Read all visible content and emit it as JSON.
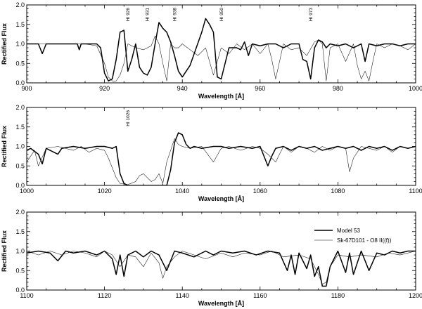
{
  "chart_data": [
    {
      "type": "line",
      "xlabel": "Wavelength [Å]",
      "ylabel": "Rectified Flux",
      "xlim": [
        900,
        1000
      ],
      "ylim": [
        0,
        2.0
      ],
      "xticks": [
        "900",
        "920",
        "940",
        "960",
        "980",
        "1000"
      ],
      "yticks": [
        "0.0",
        "0.5",
        "1.0",
        "1.5",
        "2.0"
      ],
      "line_labels": [
        {
          "text": "HI 926",
          "x": 926
        },
        {
          "text": "HI 931",
          "x": 931
        },
        {
          "text": "HI 938",
          "x": 938
        },
        {
          "text": "HI 950",
          "x": 950
        },
        {
          "text": "HI 973",
          "x": 973
        }
      ],
      "series": [
        {
          "x": [
            900,
            903,
            904,
            905,
            910,
            913,
            913.5,
            914,
            916,
            918,
            919,
            920,
            921,
            922,
            923,
            924,
            925,
            926,
            927,
            928,
            929,
            930,
            931,
            932,
            933,
            934,
            935,
            936,
            937,
            938,
            939,
            940,
            942,
            945,
            946,
            947,
            948,
            949,
            950,
            951,
            952,
            954,
            955,
            956,
            957,
            958,
            960,
            962,
            964,
            966,
            968,
            970,
            971,
            972,
            973,
            974,
            975,
            976,
            977,
            978,
            980,
            982,
            984,
            986,
            987,
            988,
            990,
            992,
            994,
            996,
            998,
            1000
          ],
          "values": [
            1.0,
            1.0,
            0.75,
            1.0,
            1.0,
            1.0,
            0.85,
            1.0,
            1.0,
            1.0,
            0.9,
            0.25,
            0.05,
            0.1,
            0.6,
            1.3,
            1.35,
            0.3,
            0.6,
            1.0,
            0.4,
            0.25,
            0.2,
            0.4,
            1.0,
            1.55,
            1.4,
            1.3,
            1.05,
            0.7,
            0.3,
            0.15,
            0.45,
            1.3,
            1.65,
            1.5,
            1.3,
            0.15,
            0.1,
            0.5,
            0.9,
            0.9,
            0.85,
            1.05,
            0.7,
            1.0,
            0.95,
            1.0,
            1.0,
            0.9,
            1.0,
            1.0,
            0.6,
            0.55,
            0.1,
            0.9,
            1.1,
            1.05,
            0.9,
            1.0,
            0.95,
            1.0,
            0.9,
            1.0,
            0.55,
            1.0,
            0.95,
            1.0,
            1.0,
            0.95,
            1.0,
            1.0
          ]
        },
        {
          "x": [
            900,
            910,
            915,
            918,
            920,
            921,
            922,
            923,
            924,
            925,
            926,
            927,
            928,
            930,
            932,
            933,
            934,
            935,
            936,
            937,
            938,
            939,
            940,
            942,
            944,
            946,
            948,
            950,
            952,
            954,
            956,
            958,
            960,
            962,
            963,
            964,
            966,
            968,
            970,
            972,
            974,
            975,
            976,
            977,
            978,
            980,
            982,
            984,
            985,
            986,
            987,
            988,
            989,
            990,
            992,
            994,
            996,
            998,
            1000
          ],
          "values": [
            1.0,
            1.0,
            1.0,
            0.95,
            0.5,
            0.15,
            0.05,
            0.05,
            0.2,
            0.5,
            1.0,
            0.95,
            0.9,
            0.85,
            0.95,
            1.2,
            1.0,
            0.5,
            0.05,
            1.0,
            0.9,
            0.9,
            1.0,
            0.85,
            0.7,
            0.9,
            0.2,
            0.9,
            0.75,
            1.0,
            0.85,
            1.0,
            0.75,
            1.0,
            0.6,
            0.1,
            1.0,
            0.85,
            0.9,
            0.7,
            1.05,
            1.1,
            1.0,
            0.05,
            0.9,
            1.0,
            0.55,
            1.0,
            0.45,
            0.1,
            0.3,
            0.05,
            0.55,
            1.0,
            0.9,
            1.0,
            0.95,
            0.85,
            1.0
          ]
        }
      ]
    },
    {
      "type": "line",
      "xlabel": "Wavelength [Å]",
      "ylabel": "Rectified Flux",
      "xlim": [
        1000,
        1100
      ],
      "ylim": [
        0,
        2.0
      ],
      "xticks": [
        "1000",
        "1020",
        "1040",
        "1060",
        "1080",
        "1100"
      ],
      "yticks": [
        "0.0",
        "0.5",
        "1.0",
        "1.5",
        "2.0"
      ],
      "line_labels": [
        {
          "text": "HI 1026",
          "x": 1026
        }
      ],
      "series": [
        {
          "x": [
            1000,
            1001,
            1003,
            1004,
            1005,
            1008,
            1009,
            1012,
            1015,
            1018,
            1020,
            1022,
            1023,
            1024,
            1025,
            1026,
            1028,
            1030,
            1032,
            1034,
            1035,
            1036,
            1037,
            1038,
            1039,
            1040,
            1041,
            1042,
            1043,
            1045,
            1048,
            1050,
            1052,
            1055,
            1058,
            1060,
            1062,
            1063,
            1064,
            1066,
            1068,
            1070,
            1072,
            1074,
            1076,
            1078,
            1080,
            1082,
            1084,
            1086,
            1088,
            1090,
            1092,
            1094,
            1096,
            1098,
            1100
          ],
          "values": [
            0.9,
            0.95,
            0.8,
            0.55,
            0.95,
            0.8,
            0.95,
            1.0,
            0.95,
            1.0,
            1.0,
            0.95,
            1.0,
            0.3,
            0.05,
            0.0,
            0.0,
            0.0,
            0.0,
            0.0,
            0.0,
            0.0,
            0.4,
            1.1,
            1.35,
            1.3,
            1.05,
            0.95,
            1.0,
            0.95,
            1.0,
            1.0,
            0.95,
            1.0,
            0.95,
            1.0,
            0.5,
            0.75,
            0.95,
            1.0,
            0.9,
            1.0,
            0.95,
            1.0,
            0.9,
            0.95,
            1.0,
            0.95,
            1.0,
            0.9,
            1.0,
            0.95,
            1.0,
            0.9,
            1.0,
            0.95,
            1.0
          ]
        },
        {
          "x": [
            1000,
            1002,
            1003,
            1005,
            1008,
            1010,
            1012,
            1014,
            1016,
            1018,
            1020,
            1021,
            1022,
            1023,
            1024,
            1026,
            1028,
            1029,
            1030,
            1031,
            1032,
            1033,
            1034,
            1035,
            1036,
            1037,
            1038,
            1039,
            1040,
            1042,
            1045,
            1048,
            1050,
            1052,
            1055,
            1058,
            1060,
            1062,
            1064,
            1066,
            1068,
            1070,
            1072,
            1074,
            1076,
            1078,
            1080,
            1082,
            1083,
            1084,
            1086,
            1088,
            1090,
            1092,
            1094,
            1096,
            1098,
            1100
          ],
          "values": [
            0.6,
            0.9,
            0.5,
            0.95,
            1.0,
            0.95,
            0.9,
            1.0,
            0.85,
            0.95,
            0.9,
            0.7,
            0.45,
            0.2,
            0.05,
            0.02,
            0.1,
            0.25,
            0.3,
            0.2,
            0.1,
            0.15,
            0.3,
            0.05,
            0.6,
            0.9,
            1.2,
            1.05,
            1.0,
            0.95,
            1.0,
            0.6,
            0.95,
            1.0,
            0.9,
            1.0,
            0.95,
            0.8,
            0.6,
            1.0,
            0.85,
            1.0,
            0.95,
            0.85,
            1.0,
            0.9,
            1.0,
            0.95,
            0.35,
            0.7,
            1.0,
            0.95,
            0.9,
            1.0,
            0.85,
            1.0,
            0.95,
            1.0
          ]
        }
      ]
    },
    {
      "type": "line",
      "xlabel": "Wavelength [Å]",
      "ylabel": "Rectified Flux",
      "xlim": [
        1100,
        1200
      ],
      "ylim": [
        0,
        2.0
      ],
      "xticks": [
        "1100",
        "1120",
        "1140",
        "1160",
        "1180",
        "1200"
      ],
      "yticks": [
        "0.0",
        "0.5",
        "1.0",
        "1.5",
        "2.0"
      ],
      "legend": {
        "position": "right",
        "entries": [
          "Model 53",
          "Sk-67D101 - O8 II((f))"
        ]
      },
      "series": [
        {
          "name": "Model 53",
          "x": [
            1100,
            1103,
            1106,
            1108,
            1110,
            1112,
            1115,
            1118,
            1120,
            1122,
            1123,
            1124,
            1125,
            1126,
            1128,
            1130,
            1132,
            1134,
            1136,
            1138,
            1140,
            1143,
            1146,
            1148,
            1150,
            1153,
            1156,
            1159,
            1162,
            1165,
            1167,
            1168,
            1169,
            1170,
            1172,
            1173,
            1174,
            1175,
            1176,
            1177,
            1178,
            1180,
            1182,
            1183,
            1184,
            1186,
            1188,
            1190,
            1192,
            1194,
            1196,
            1198,
            1200
          ],
          "values": [
            0.95,
            1.0,
            0.95,
            0.75,
            1.0,
            0.95,
            1.0,
            0.9,
            1.0,
            0.8,
            0.4,
            0.9,
            0.35,
            0.9,
            1.0,
            0.85,
            1.0,
            0.9,
            0.5,
            1.0,
            0.95,
            0.85,
            1.0,
            0.9,
            1.0,
            0.95,
            1.0,
            0.9,
            1.0,
            0.95,
            0.5,
            0.9,
            0.4,
            0.95,
            0.55,
            0.9,
            0.35,
            0.6,
            0.1,
            0.1,
            0.6,
            1.0,
            0.45,
            0.95,
            0.4,
            1.0,
            0.5,
            0.95,
            0.9,
            1.0,
            0.95,
            1.0,
            1.0
          ]
        },
        {
          "name": "Sk-67D101 - O8 II((f))",
          "x": [
            1100,
            1103,
            1106,
            1109,
            1112,
            1115,
            1118,
            1120,
            1122,
            1124,
            1126,
            1128,
            1130,
            1132,
            1134,
            1135,
            1136,
            1138,
            1140,
            1143,
            1146,
            1150,
            1153,
            1156,
            1160,
            1163,
            1166,
            1170,
            1173,
            1175,
            1176,
            1177,
            1178,
            1180,
            1183,
            1186,
            1190,
            1193,
            1196,
            1200
          ],
          "values": [
            1.0,
            0.9,
            1.0,
            0.9,
            1.0,
            0.95,
            0.85,
            1.0,
            0.9,
            0.6,
            0.9,
            0.85,
            0.6,
            0.95,
            0.7,
            0.3,
            0.6,
            0.85,
            1.0,
            0.9,
            0.8,
            0.95,
            0.85,
            0.95,
            0.9,
            1.0,
            0.85,
            0.9,
            0.8,
            0.4,
            0.15,
            0.2,
            0.6,
            0.9,
            0.85,
            0.9,
            0.85,
            0.95,
            0.9,
            1.0
          ]
        }
      ]
    }
  ]
}
